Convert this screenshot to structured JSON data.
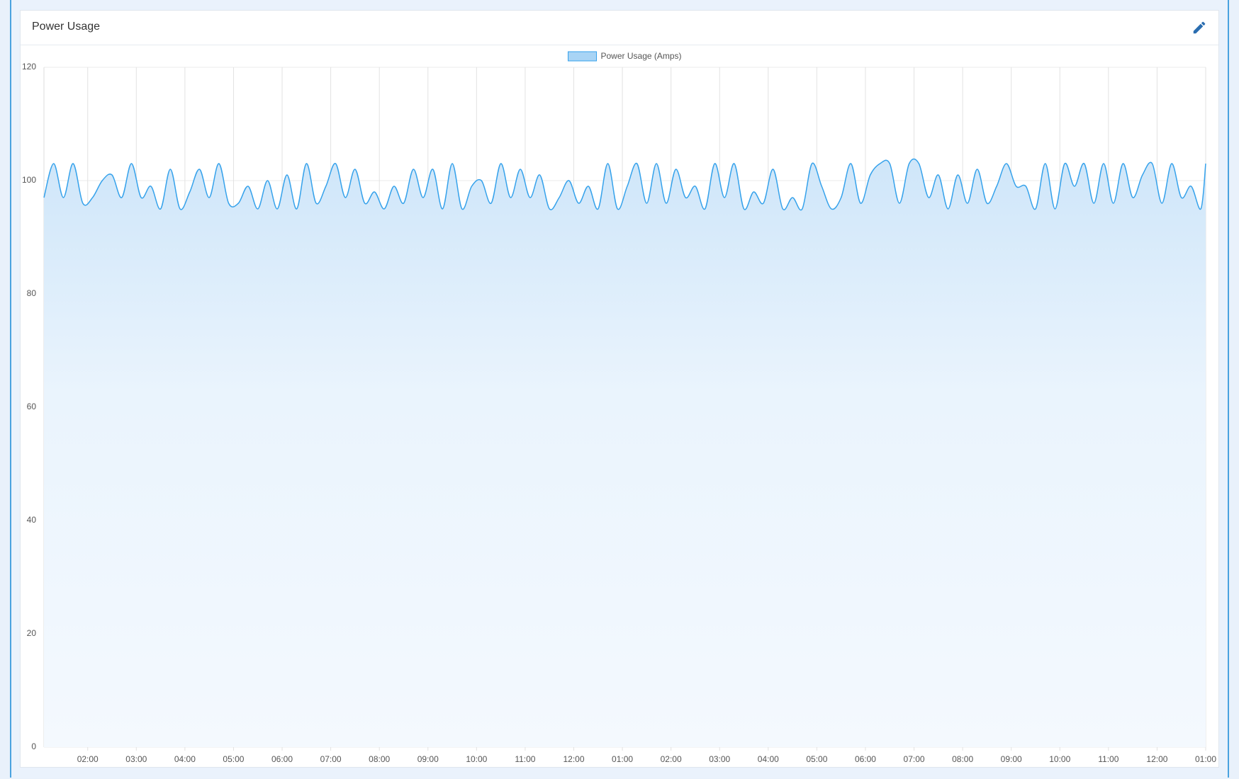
{
  "chart_data": {
    "type": "area",
    "title": "Power Usage",
    "x": [
      1.1,
      1.3,
      1.5,
      1.7,
      1.9,
      2.1,
      2.3,
      2.5,
      2.7,
      2.9,
      3.1,
      3.3,
      3.5,
      3.7,
      3.9,
      4.1,
      4.3,
      4.5,
      4.7,
      4.9,
      5.1,
      5.3,
      5.5,
      5.7,
      5.9,
      6.1,
      6.3,
      6.5,
      6.7,
      6.9,
      7.1,
      7.3,
      7.5,
      7.7,
      7.9,
      8.1,
      8.3,
      8.5,
      8.7,
      8.9,
      9.1,
      9.3,
      9.5,
      9.7,
      9.9,
      10.1,
      10.3,
      10.5,
      10.7,
      10.9,
      11.1,
      11.3,
      11.5,
      11.7,
      11.9,
      12.1,
      12.3,
      12.5,
      12.7,
      12.9,
      13.1,
      13.3,
      13.5,
      13.7,
      13.9,
      14.1,
      14.3,
      14.5,
      14.7,
      14.9,
      15.1,
      15.3,
      15.5,
      15.7,
      15.9,
      16.1,
      16.3,
      16.5,
      16.7,
      16.9,
      17.1,
      17.3,
      17.5,
      17.7,
      17.9,
      18.1,
      18.3,
      18.5,
      18.7,
      18.9,
      19.1,
      19.3,
      19.5,
      19.7,
      19.9,
      20.1,
      20.3,
      20.5,
      20.7,
      20.9,
      21.1,
      21.3,
      21.5,
      21.7,
      21.9,
      22.1,
      22.3,
      22.5,
      22.7,
      22.9,
      23.1,
      23.3,
      23.5,
      23.7,
      23.9,
      24.1,
      24.3,
      24.5,
      24.7,
      24.9,
      25
    ],
    "series": [
      {
        "name": "Power Usage (Amps)",
        "color": "#36a2eb",
        "values": [
          97,
          103,
          97,
          103,
          96,
          97,
          100,
          101,
          97,
          103,
          97,
          99,
          95,
          102,
          95,
          98,
          102,
          97,
          103,
          96,
          96,
          99,
          95,
          100,
          95,
          101,
          95,
          103,
          96,
          99,
          103,
          97,
          102,
          96,
          98,
          95,
          99,
          96,
          102,
          97,
          102,
          95,
          103,
          95,
          99,
          100,
          96,
          103,
          97,
          102,
          97,
          101,
          95,
          97,
          100,
          96,
          99,
          95,
          103,
          95,
          99,
          103,
          96,
          103,
          96,
          102,
          97,
          99,
          95,
          103,
          97,
          103,
          95,
          98,
          96,
          102,
          95,
          97,
          95,
          103,
          99,
          95,
          97,
          103,
          96,
          101,
          103,
          103,
          96,
          103,
          103,
          97,
          101,
          95,
          101,
          96,
          102,
          96,
          99,
          103,
          99,
          99,
          95,
          103,
          95,
          103,
          99,
          103,
          96,
          103,
          96,
          103,
          97,
          101,
          103,
          96,
          103,
          97,
          99,
          95,
          103
        ]
      }
    ],
    "xlim": [
      1.1,
      25
    ],
    "xticks": [
      {
        "value": 2,
        "label": "02:00"
      },
      {
        "value": 3,
        "label": "03:00"
      },
      {
        "value": 4,
        "label": "04:00"
      },
      {
        "value": 5,
        "label": "05:00"
      },
      {
        "value": 6,
        "label": "06:00"
      },
      {
        "value": 7,
        "label": "07:00"
      },
      {
        "value": 8,
        "label": "08:00"
      },
      {
        "value": 9,
        "label": "09:00"
      },
      {
        "value": 10,
        "label": "10:00"
      },
      {
        "value": 11,
        "label": "11:00"
      },
      {
        "value": 12,
        "label": "12:00"
      },
      {
        "value": 13,
        "label": "01:00"
      },
      {
        "value": 14,
        "label": "02:00"
      },
      {
        "value": 15,
        "label": "03:00"
      },
      {
        "value": 16,
        "label": "04:00"
      },
      {
        "value": 17,
        "label": "05:00"
      },
      {
        "value": 18,
        "label": "06:00"
      },
      {
        "value": 19,
        "label": "07:00"
      },
      {
        "value": 20,
        "label": "08:00"
      },
      {
        "value": 21,
        "label": "09:00"
      },
      {
        "value": 22,
        "label": "10:00"
      },
      {
        "value": 23,
        "label": "11:00"
      },
      {
        "value": 24,
        "label": "12:00"
      },
      {
        "value": 25,
        "label": "01:00"
      }
    ],
    "ylim": [
      0,
      120
    ],
    "yticks": [
      0,
      20,
      40,
      60,
      80,
      100,
      120
    ],
    "grid": true
  }
}
